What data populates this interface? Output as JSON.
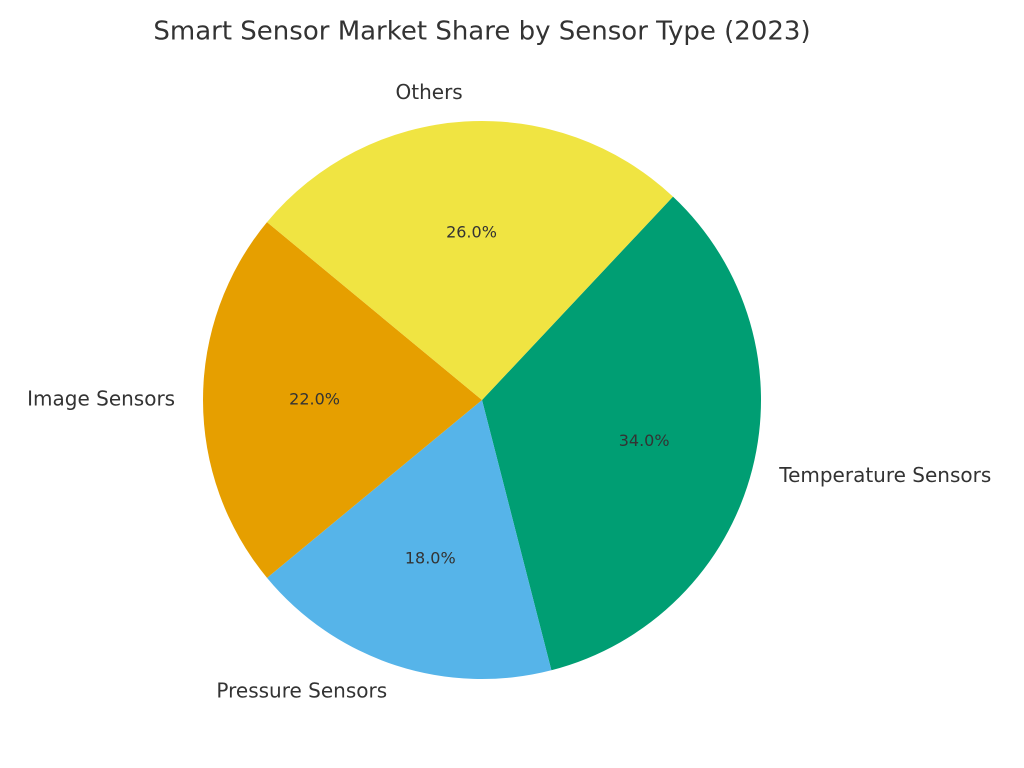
{
  "chart_data": {
    "type": "pie",
    "title": "Smart Sensor Market Share by Sensor Type (2023)",
    "categories": [
      "Temperature Sensors",
      "Pressure Sensors",
      "Image Sensors",
      "Others"
    ],
    "values": [
      34,
      18,
      22,
      26
    ],
    "value_labels": [
      "34.0%",
      "18.0%",
      "22.0%",
      "26.0%"
    ],
    "colors": [
      "#009E73",
      "#56B4E9",
      "#E69F00",
      "#F0E442"
    ]
  }
}
